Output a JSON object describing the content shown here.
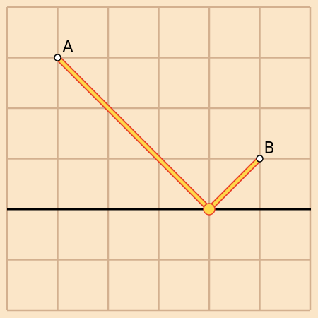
{
  "grid": {
    "columns": 6,
    "rows": 6,
    "line_color": "#d3b08f",
    "background": "#fbe6c8"
  },
  "mirror_line": {
    "grid_y": 4,
    "color": "#000000"
  },
  "points": {
    "A": {
      "label": "A",
      "grid_x": 1,
      "grid_y": 1
    },
    "B": {
      "label": "B",
      "grid_x": 5,
      "grid_y": 3
    },
    "reflection": {
      "grid_x": 4,
      "grid_y": 4
    }
  },
  "path_colors": {
    "stroke": "#e8402a",
    "fill": "#ffd84a"
  }
}
